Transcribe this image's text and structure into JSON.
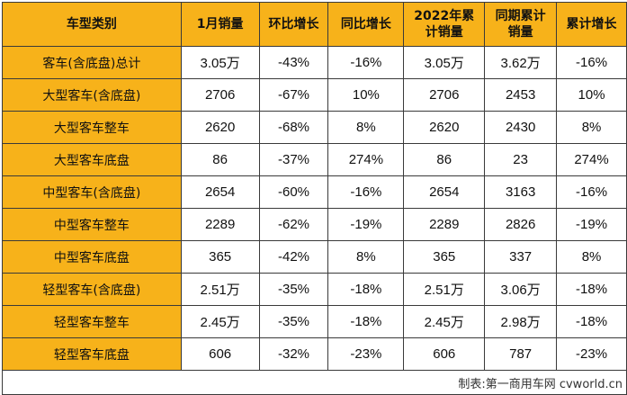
{
  "table": {
    "headers": [
      "车型类别",
      "1月销量",
      "环比增长",
      "同比增长",
      "2022年累计销量",
      "同期累计销量",
      "累计增长"
    ],
    "rows": [
      [
        "客车(含底盘)总计",
        "3.05万",
        "-43%",
        "-16%",
        "3.05万",
        "3.62万",
        "-16%"
      ],
      [
        "大型客车(含底盘)",
        "2706",
        "-67%",
        "10%",
        "2706",
        "2453",
        "10%"
      ],
      [
        "大型客车整车",
        "2620",
        "-68%",
        "8%",
        "2620",
        "2430",
        "8%"
      ],
      [
        "大型客车底盘",
        "86",
        "-37%",
        "274%",
        "86",
        "23",
        "274%"
      ],
      [
        "中型客车(含底盘)",
        "2654",
        "-60%",
        "-16%",
        "2654",
        "3163",
        "-16%"
      ],
      [
        "中型客车整车",
        "2289",
        "-62%",
        "-19%",
        "2289",
        "2826",
        "-19%"
      ],
      [
        "中型客车底盘",
        "365",
        "-42%",
        "8%",
        "365",
        "337",
        "8%"
      ],
      [
        "轻型客车(含底盘)",
        "2.51万",
        "-35%",
        "-18%",
        "2.51万",
        "3.06万",
        "-18%"
      ],
      [
        "轻型客车整车",
        "2.45万",
        "-35%",
        "-18%",
        "2.45万",
        "2.98万",
        "-18%"
      ],
      [
        "轻型客车底盘",
        "606",
        "-32%",
        "-23%",
        "606",
        "787",
        "-23%"
      ]
    ],
    "footer": "制表:第一商用车网 cvworld.cn",
    "colors": {
      "header_bg": "#f7b21a",
      "category_bg": "#f7b21a",
      "border": "#3a3a3a"
    }
  }
}
